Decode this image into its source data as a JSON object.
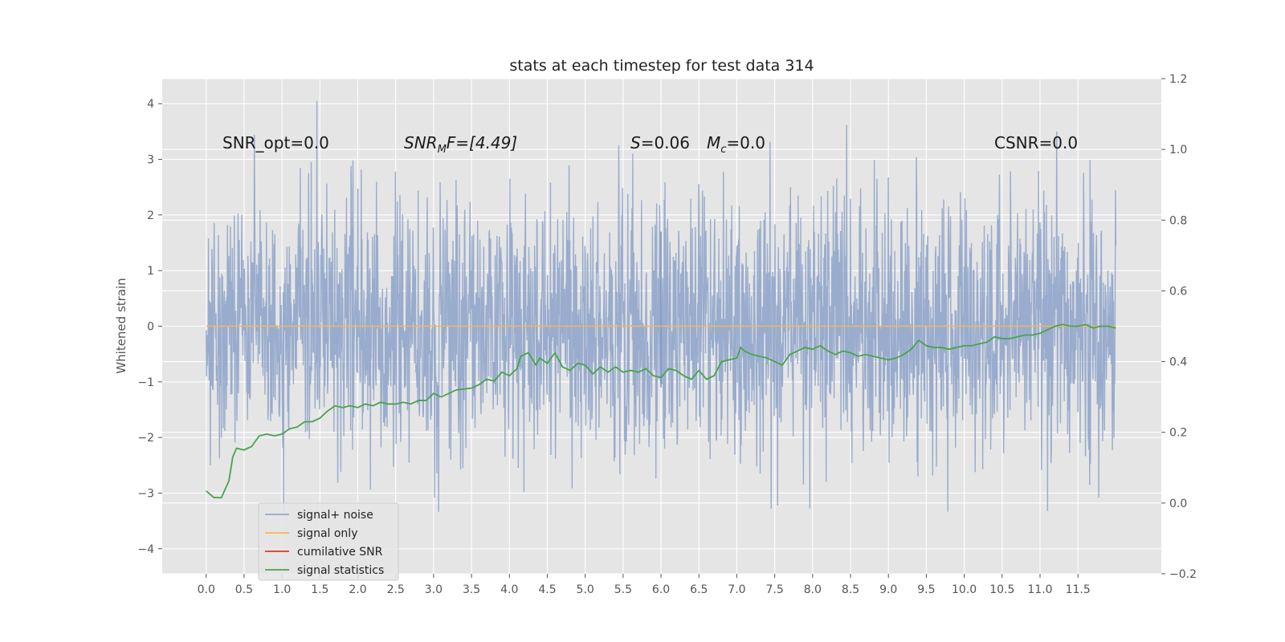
{
  "chart_data": {
    "type": "line",
    "title": "stats at each timestep for test data 314",
    "ylabel": "Whitened strain",
    "xlabel": "",
    "xlim": [
      -0.58,
      12.6
    ],
    "ylim": [
      -4.45,
      4.45
    ],
    "y2lim": [
      -0.2,
      1.2
    ],
    "x_ticks": [
      "0.0",
      "0.5",
      "1.0",
      "1.5",
      "2.0",
      "2.5",
      "3.0",
      "3.5",
      "4.0",
      "4.5",
      "5.0",
      "5.5",
      "6.0",
      "6.5",
      "7.0",
      "7.5",
      "8.0",
      "8.5",
      "9.0",
      "9.5",
      "10.0",
      "10.5",
      "11.0",
      "11.5"
    ],
    "y_ticks": [
      "4",
      "3",
      "2",
      "1",
      "0",
      "−1",
      "−2",
      "−3",
      "−4"
    ],
    "y2_ticks": [
      "1.2",
      "1.0",
      "0.8",
      "0.6",
      "0.4",
      "0.2",
      "0.0",
      "−0.2"
    ],
    "grid": true,
    "legend_position": "lower-left",
    "annotations": {
      "snr_opt": "SNR_opt=0.0",
      "snr_mf_main": "SNR",
      "snr_mf_sub": "M",
      "snr_mf_rest": "F=[4.49]",
      "s_var": "S",
      "s_rest": "=0.06",
      "mc_var": "M",
      "mc_sub": "c",
      "mc_rest": "=0.0",
      "csnr": "CSNR=0.0"
    },
    "series": [
      {
        "name": "signal+ noise",
        "color": "#95a9cb",
        "axis": "left",
        "description_range": [
          0.0,
          12.0
        ],
        "noise_std": 1.0
      },
      {
        "name": "signal only",
        "color": "#f0b85e",
        "axis": "left",
        "x": [
          0.0,
          12.0
        ],
        "y": [
          0.0,
          0.0
        ]
      },
      {
        "name": "cumilative SNR",
        "color": "#e0372a",
        "axis": "right",
        "x": [],
        "y": []
      },
      {
        "name": "signal statistics",
        "color": "#4aa24e",
        "axis": "right",
        "x": [
          0.0,
          0.1,
          0.2,
          0.3,
          0.35,
          0.4,
          0.5,
          0.6,
          0.7,
          0.8,
          0.9,
          1.0,
          1.1,
          1.2,
          1.3,
          1.4,
          1.5,
          1.6,
          1.7,
          1.8,
          1.9,
          2.0,
          2.1,
          2.2,
          2.3,
          2.4,
          2.5,
          2.6,
          2.7,
          2.8,
          2.9,
          3.0,
          3.1,
          3.3,
          3.5,
          3.6,
          3.7,
          3.8,
          3.9,
          4.0,
          4.1,
          4.15,
          4.25,
          4.35,
          4.4,
          4.5,
          4.6,
          4.7,
          4.8,
          4.9,
          5.0,
          5.1,
          5.2,
          5.3,
          5.4,
          5.5,
          5.6,
          5.7,
          5.8,
          5.9,
          6.0,
          6.1,
          6.2,
          6.3,
          6.4,
          6.5,
          6.6,
          6.7,
          6.8,
          6.9,
          7.0,
          7.05,
          7.1,
          7.2,
          7.3,
          7.4,
          7.5,
          7.6,
          7.7,
          7.8,
          7.9,
          8.0,
          8.1,
          8.2,
          8.3,
          8.4,
          8.5,
          8.6,
          8.7,
          8.8,
          8.9,
          9.0,
          9.1,
          9.2,
          9.3,
          9.4,
          9.5,
          9.6,
          9.7,
          9.8,
          9.9,
          10.0,
          10.1,
          10.2,
          10.3,
          10.4,
          10.5,
          10.6,
          10.7,
          10.8,
          10.9,
          11.0,
          11.1,
          11.2,
          11.3,
          11.4,
          11.5,
          11.6,
          11.7,
          11.8,
          11.9,
          12.0
        ],
        "y": [
          0.034,
          0.016,
          0.015,
          0.063,
          0.13,
          0.155,
          0.15,
          0.16,
          0.19,
          0.195,
          0.19,
          0.195,
          0.21,
          0.215,
          0.23,
          0.23,
          0.24,
          0.26,
          0.275,
          0.27,
          0.275,
          0.27,
          0.28,
          0.275,
          0.285,
          0.28,
          0.28,
          0.285,
          0.28,
          0.29,
          0.29,
          0.31,
          0.3,
          0.32,
          0.325,
          0.335,
          0.35,
          0.345,
          0.37,
          0.36,
          0.38,
          0.415,
          0.425,
          0.39,
          0.41,
          0.395,
          0.425,
          0.385,
          0.375,
          0.395,
          0.39,
          0.365,
          0.385,
          0.37,
          0.385,
          0.37,
          0.375,
          0.37,
          0.38,
          0.36,
          0.355,
          0.38,
          0.375,
          0.36,
          0.35,
          0.375,
          0.35,
          0.36,
          0.4,
          0.405,
          0.41,
          0.44,
          0.43,
          0.42,
          0.415,
          0.41,
          0.4,
          0.39,
          0.42,
          0.43,
          0.44,
          0.435,
          0.445,
          0.43,
          0.42,
          0.43,
          0.425,
          0.415,
          0.42,
          0.415,
          0.41,
          0.405,
          0.41,
          0.42,
          0.435,
          0.46,
          0.445,
          0.44,
          0.44,
          0.435,
          0.44,
          0.445,
          0.445,
          0.45,
          0.455,
          0.47,
          0.465,
          0.465,
          0.47,
          0.475,
          0.475,
          0.48,
          0.49,
          0.5,
          0.505,
          0.5,
          0.5,
          0.505,
          0.495,
          0.5,
          0.5,
          0.495
        ]
      }
    ]
  }
}
